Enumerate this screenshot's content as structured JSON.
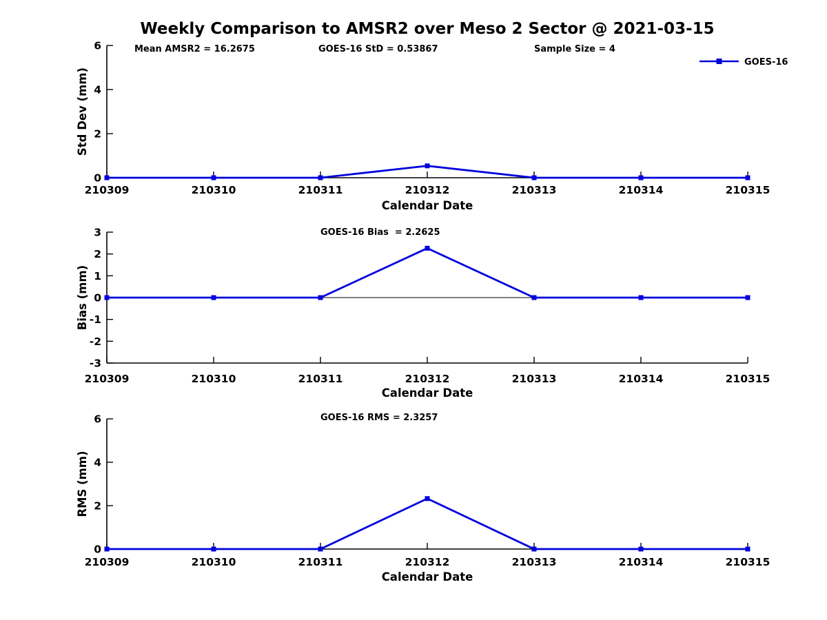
{
  "title": "Weekly Comparison to AMSR2 over Meso 2 Sector @ 2021-03-15",
  "colors": {
    "line": "#0000dd",
    "axis": "#000000",
    "text": "#000000",
    "background": "#ffffff"
  },
  "legend": {
    "label": "GOES-16",
    "position": "top-right"
  },
  "chart_data": [
    {
      "type": "line",
      "name": "std_dev",
      "annotations": [
        "Mean AMSR2 = 16.2675",
        "GOES-16 StD = 0.53867",
        "Sample Size = 4"
      ],
      "xlabel": "Calendar Date",
      "ylabel": "Std Dev (mm)",
      "categories": [
        "210309",
        "210310",
        "210311",
        "210312",
        "210313",
        "210314",
        "210315"
      ],
      "series": [
        {
          "name": "GOES-16",
          "values": [
            0,
            0,
            0,
            0.53867,
            0,
            0,
            0
          ]
        }
      ],
      "ylim": [
        0,
        6
      ],
      "yticks": [
        0,
        2,
        4,
        6
      ],
      "grid": false,
      "zero_line": false,
      "legend_visible": true
    },
    {
      "type": "line",
      "name": "bias",
      "annotations": [
        "GOES-16 Bias  = 2.2625"
      ],
      "xlabel": "Calendar Date",
      "ylabel": "Bias (mm)",
      "categories": [
        "210309",
        "210310",
        "210311",
        "210312",
        "210313",
        "210314",
        "210315"
      ],
      "series": [
        {
          "name": "GOES-16",
          "values": [
            0,
            0,
            0,
            2.2625,
            0,
            0,
            0
          ]
        }
      ],
      "ylim": [
        -3,
        3
      ],
      "yticks": [
        -3,
        -2,
        -1,
        0,
        1,
        2,
        3
      ],
      "grid": false,
      "zero_line": true,
      "legend_visible": false
    },
    {
      "type": "line",
      "name": "rms",
      "annotations": [
        "GOES-16 RMS = 2.3257"
      ],
      "xlabel": "Calendar Date",
      "ylabel": "RMS (mm)",
      "categories": [
        "210309",
        "210310",
        "210311",
        "210312",
        "210313",
        "210314",
        "210315"
      ],
      "series": [
        {
          "name": "GOES-16",
          "values": [
            0,
            0,
            0,
            2.3257,
            0,
            0,
            0
          ]
        }
      ],
      "ylim": [
        0,
        6
      ],
      "yticks": [
        0,
        2,
        4,
        6
      ],
      "grid": false,
      "zero_line": false,
      "legend_visible": false
    }
  ]
}
